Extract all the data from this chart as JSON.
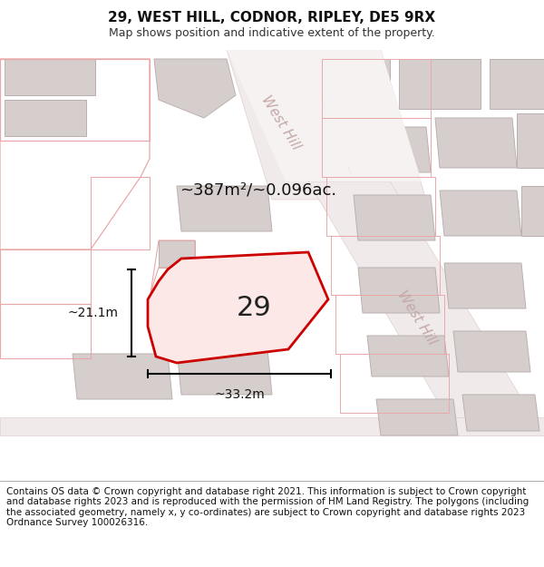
{
  "title": "29, WEST HILL, CODNOR, RIPLEY, DE5 9RX",
  "subtitle": "Map shows position and indicative extent of the property.",
  "footer": "Contains OS data © Crown copyright and database right 2021. This information is subject to Crown copyright and database rights 2023 and is reproduced with the permission of HM Land Registry. The polygons (including the associated geometry, namely x, y co-ordinates) are subject to Crown copyright and database rights 2023 Ordnance Survey 100026316.",
  "area_label": "~387m²/~0.096ac.",
  "property_number": "29",
  "width_label": "~33.2m",
  "height_label": "~21.1m",
  "bg_color": "#ffffff",
  "map_bg": "#f7f2f2",
  "building_fill": "#d6cecd",
  "building_edge": "#bbb0af",
  "boundary_color": "#e8a8a8",
  "highlight_color": "#cc0000",
  "highlight_fill": "#fde8e8",
  "road_label_color": "#c4a8a8",
  "title_fontsize": 11,
  "subtitle_fontsize": 9,
  "footer_fontsize": 7.5,
  "label_fontsize": 13,
  "number_fontsize": 22,
  "street_fontsize": 11
}
